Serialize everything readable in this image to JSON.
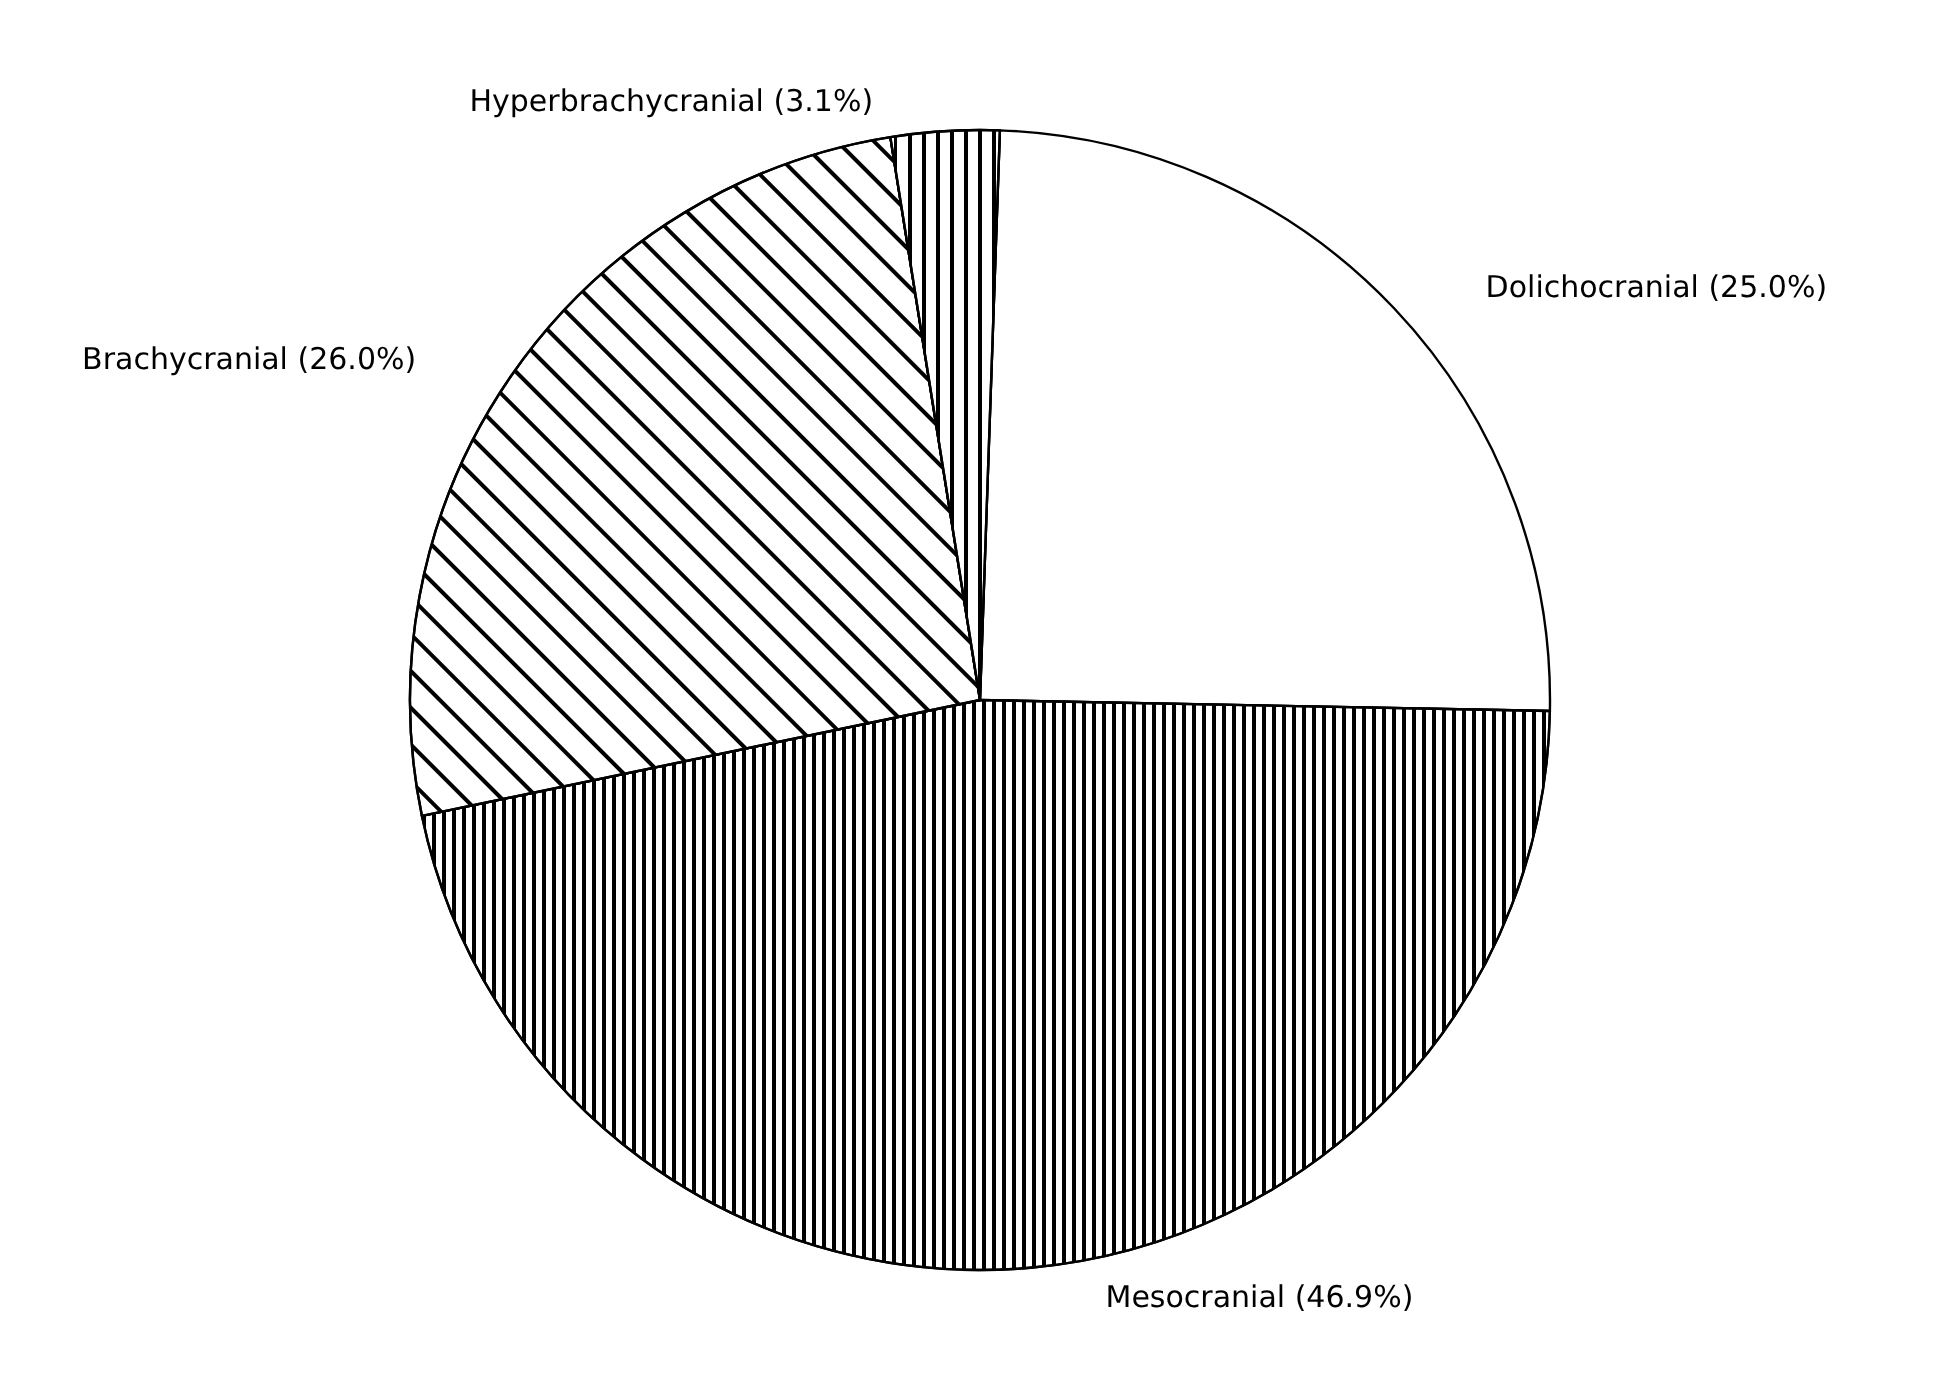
{
  "chart_data": {
    "type": "pie",
    "categories": [
      "Dolichocranial",
      "Mesocranial",
      "Brachycranial",
      "Hyperbrachycranial"
    ],
    "values": [
      25.0,
      46.9,
      26.0,
      3.1
    ],
    "value_labels": [
      "(25.0%)",
      "(46.9%)",
      "(26.0%)",
      "(3.1%)"
    ],
    "colors": [
      "#ffffff",
      "#ffffff",
      "#ffffff",
      "#ffffff"
    ],
    "legend": false
  }
}
